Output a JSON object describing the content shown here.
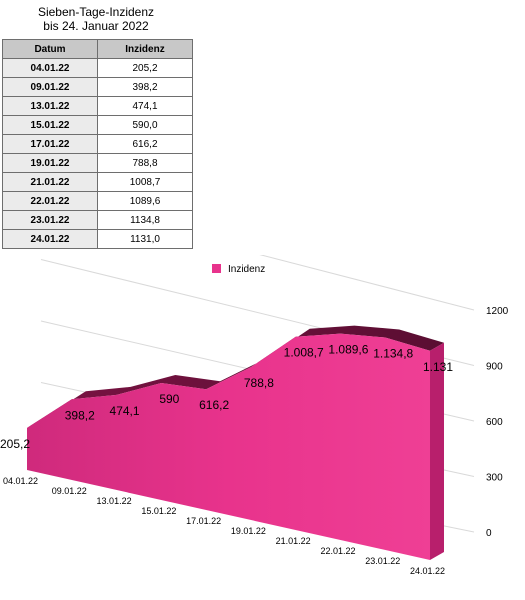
{
  "title_line1": "Sieben-Tage-Inzidenz",
  "title_line2": "bis 24. Januar 2022",
  "table": {
    "headers": [
      "Datum",
      "Inzidenz"
    ],
    "rows": [
      [
        "04.01.22",
        "205,2"
      ],
      [
        "09.01.22",
        "398,2"
      ],
      [
        "13.01.22",
        "474,1"
      ],
      [
        "15.01.22",
        "590,0"
      ],
      [
        "17.01.22",
        "616,2"
      ],
      [
        "19.01.22",
        "788,8"
      ],
      [
        "21.01.22",
        "1008,7"
      ],
      [
        "22.01.22",
        "1089,6"
      ],
      [
        "23.01.22",
        "1134,8"
      ],
      [
        "24.01.22",
        "1131,0"
      ]
    ]
  },
  "chart_data": {
    "type": "area",
    "legend": "Inzidenz",
    "legend_position": "top",
    "color": "#e8338c",
    "categories": [
      "04.01.22",
      "09.01.22",
      "13.01.22",
      "15.01.22",
      "17.01.22",
      "19.01.22",
      "21.01.22",
      "22.01.22",
      "23.01.22",
      "24.01.22"
    ],
    "values": [
      205.2,
      398.2,
      474.1,
      590.0,
      616.2,
      788.8,
      1008.7,
      1089.6,
      1134.8,
      1131.0
    ],
    "data_labels": [
      "205,2",
      "398,2",
      "474,1",
      "590",
      "616,2",
      "788,8",
      "1.008,7",
      "1.089,6",
      "1.134,8",
      "1.131"
    ],
    "y_ticks": [
      "0",
      "300",
      "600",
      "900",
      "1200"
    ],
    "ylim": [
      0,
      1200
    ],
    "grid": true
  }
}
